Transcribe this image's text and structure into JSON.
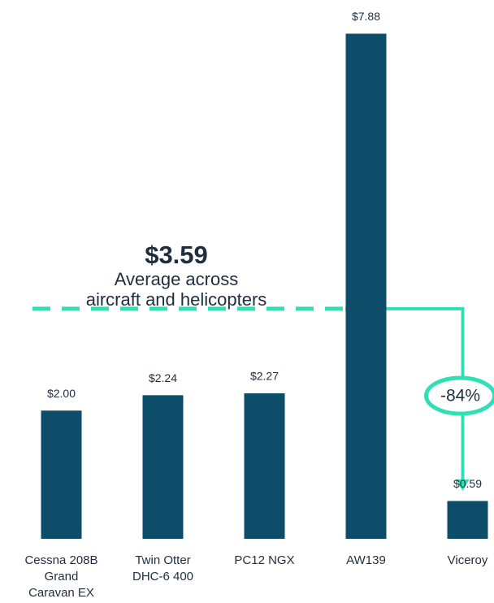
{
  "chart_data": {
    "type": "bar",
    "categories": [
      [
        "Cessna 208B",
        "Grand",
        "Caravan EX"
      ],
      [
        "Twin Otter",
        "DHC-6 400"
      ],
      [
        "PC12 NGX"
      ],
      [
        "AW139"
      ],
      [
        "Viceroy"
      ]
    ],
    "values": [
      2.0,
      2.24,
      2.27,
      7.88,
      0.59
    ],
    "value_labels": [
      "$2.00",
      "$2.24",
      "$2.27",
      "$7.88",
      "$0.59"
    ],
    "color": "#0e4d6a",
    "ylim": [
      0,
      8
    ],
    "average": {
      "value": 3.59,
      "label": "$3.59",
      "text": [
        "Average across",
        "aircraft and helicopters"
      ],
      "color": "#2fe0b5"
    },
    "change_label": "-84%"
  }
}
